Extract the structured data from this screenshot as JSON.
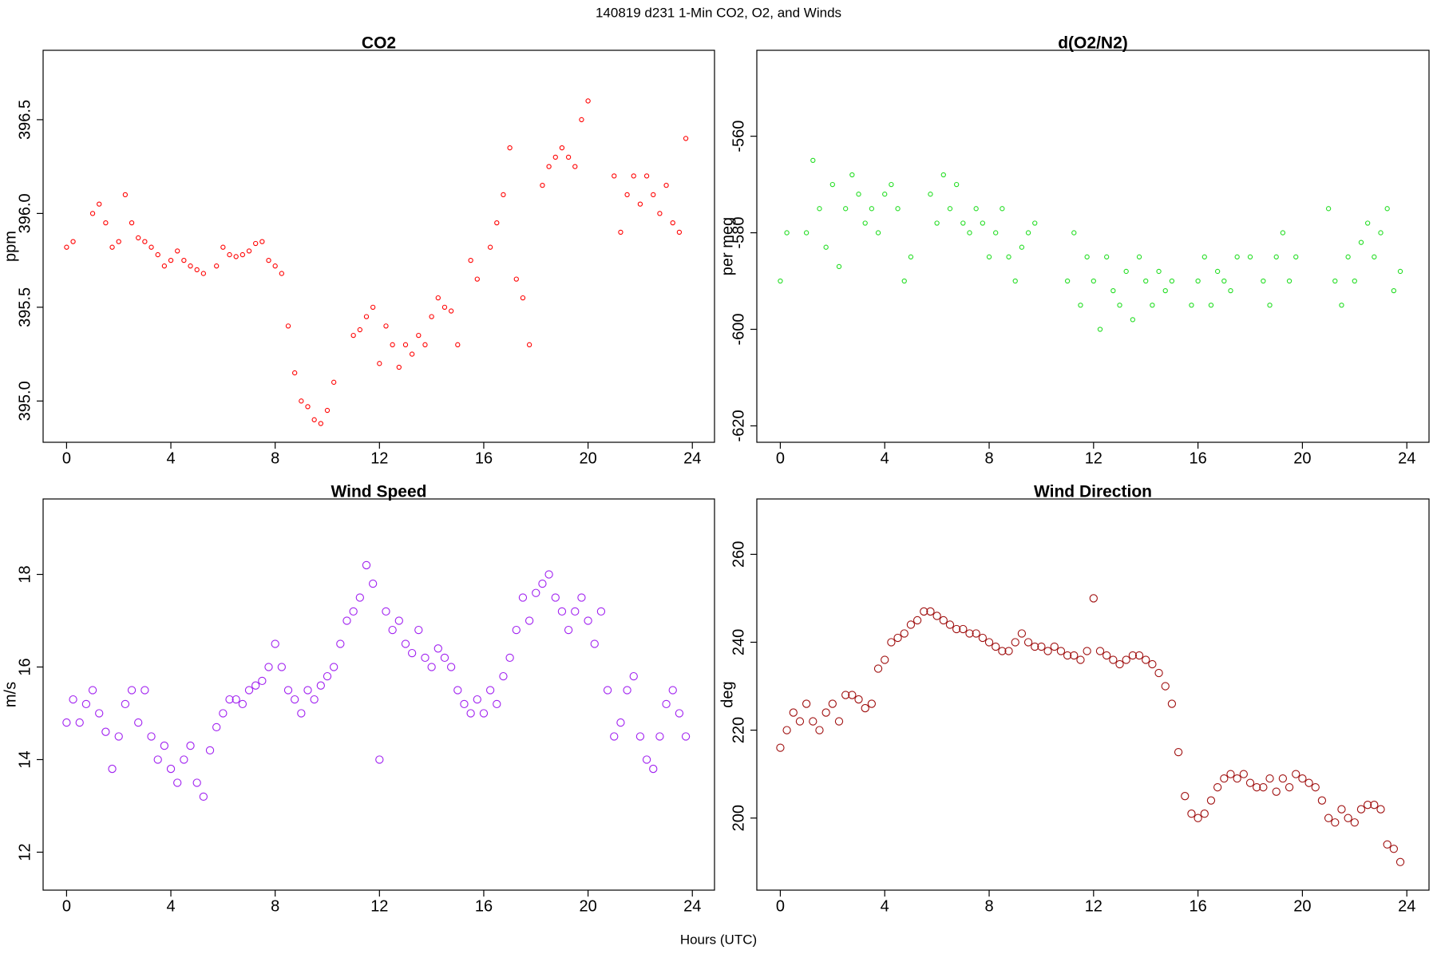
{
  "title": "140819   d231   1-Min CO2, O2, and Winds",
  "xlabel": "Hours (UTC)",
  "chart_data": [
    {
      "type": "scatter",
      "title": "CO2",
      "ylabel": "ppm",
      "color": "#ff0000",
      "x": [
        0,
        0.25,
        0.5,
        0.75,
        1,
        1.25,
        1.5,
        1.75,
        2,
        2.25,
        2.5,
        2.75,
        3,
        3.25,
        3.5,
        3.75,
        4,
        4.25,
        4.5,
        4.75,
        5,
        5.25,
        5.5,
        5.75,
        6,
        6.25,
        6.5,
        6.75,
        7,
        7.25,
        7.5,
        7.75,
        8,
        8.25,
        8.5,
        8.75,
        9,
        9.25,
        9.5,
        9.75,
        10,
        10.25,
        10.5,
        10.75,
        11,
        11.25,
        11.5,
        11.75,
        12,
        12.25,
        12.5,
        12.75,
        13,
        13.25,
        13.5,
        13.75,
        14,
        14.25,
        14.5,
        14.75,
        15,
        15.25,
        15.5,
        15.75,
        16,
        16.25,
        16.5,
        16.75,
        17,
        17.25,
        17.5,
        17.75,
        18,
        18.25,
        18.5,
        18.75,
        19,
        19.25,
        19.5,
        19.75,
        20,
        20.25,
        20.5,
        20.75,
        21,
        21.25,
        21.5,
        21.75,
        22,
        22.25,
        22.5,
        22.75,
        23,
        23.25,
        23.5,
        23.75
      ],
      "values": [
        395.82,
        395.85,
        null,
        null,
        396.0,
        396.05,
        395.95,
        395.82,
        395.85,
        396.1,
        395.95,
        395.87,
        395.85,
        395.82,
        395.78,
        395.72,
        395.75,
        395.8,
        395.75,
        395.72,
        395.7,
        395.68,
        null,
        395.72,
        395.82,
        395.78,
        395.77,
        395.78,
        395.8,
        395.84,
        395.85,
        395.75,
        395.72,
        395.68,
        395.4,
        395.15,
        395.0,
        394.97,
        394.9,
        394.88,
        394.95,
        395.1,
        null,
        null,
        395.35,
        395.38,
        395.45,
        395.5,
        395.2,
        395.4,
        395.3,
        395.18,
        395.3,
        395.25,
        395.35,
        395.3,
        395.45,
        395.55,
        395.5,
        395.48,
        395.3,
        null,
        395.75,
        395.65,
        null,
        395.82,
        395.95,
        396.1,
        396.35,
        395.65,
        395.55,
        395.3,
        null,
        396.15,
        396.25,
        396.3,
        396.35,
        396.3,
        396.25,
        396.5,
        396.6,
        null,
        null,
        null,
        396.2,
        395.9,
        396.1,
        396.2,
        396.05,
        396.2,
        396.1,
        396.0,
        396.15,
        395.95,
        395.9,
        396.4
      ],
      "xlim": [
        -0.9,
        24.85
      ],
      "xticks": [
        0,
        4,
        8,
        12,
        16,
        20,
        24
      ],
      "ylim": [
        394.78,
        396.87
      ],
      "yticks": [
        {
          "value": 395,
          "label": "395.0"
        },
        395.5,
        {
          "value": 396,
          "label": "396.0"
        },
        396.5
      ]
    },
    {
      "type": "scatter",
      "title": "d(O2/N2)",
      "ylabel": "per meg",
      "color": "#22dd22",
      "x": [
        0,
        0.25,
        0.5,
        0.75,
        1,
        1.25,
        1.5,
        1.75,
        2,
        2.25,
        2.5,
        2.75,
        3,
        3.25,
        3.5,
        3.75,
        4,
        4.25,
        4.5,
        4.75,
        5,
        5.25,
        5.5,
        5.75,
        6,
        6.25,
        6.5,
        6.75,
        7,
        7.25,
        7.5,
        7.75,
        8,
        8.25,
        8.5,
        8.75,
        9,
        9.25,
        9.5,
        9.75,
        10,
        10.25,
        10.5,
        10.75,
        11,
        11.25,
        11.5,
        11.75,
        12,
        12.25,
        12.5,
        12.75,
        13,
        13.25,
        13.5,
        13.75,
        14,
        14.25,
        14.5,
        14.75,
        15,
        15.25,
        15.5,
        15.75,
        16,
        16.25,
        16.5,
        16.75,
        17,
        17.25,
        17.5,
        17.75,
        18,
        18.25,
        18.5,
        18.75,
        19,
        19.25,
        19.5,
        19.75,
        20,
        20.25,
        20.5,
        20.75,
        21,
        21.25,
        21.5,
        21.75,
        22,
        22.25,
        22.5,
        22.75,
        23,
        23.25,
        23.5,
        23.75
      ],
      "values": [
        -590,
        -580,
        null,
        null,
        -580,
        -565,
        -575,
        -583,
        -570,
        -587,
        -575,
        -568,
        -572,
        -578,
        -575,
        -580,
        -572,
        -570,
        -575,
        -590,
        -585,
        null,
        null,
        -572,
        -578,
        -568,
        -575,
        -570,
        -578,
        -580,
        -575,
        -578,
        -585,
        -580,
        -575,
        -585,
        -590,
        -583,
        -580,
        -578,
        null,
        null,
        null,
        null,
        -590,
        -580,
        -595,
        -585,
        -590,
        -600,
        -585,
        -592,
        -595,
        -588,
        -598,
        -585,
        -590,
        -595,
        -588,
        -592,
        -590,
        null,
        null,
        -595,
        -590,
        -585,
        -595,
        -588,
        -590,
        -592,
        -585,
        null,
        -585,
        null,
        -590,
        -595,
        -585,
        -580,
        -590,
        -585,
        null,
        null,
        null,
        null,
        -575,
        -590,
        -595,
        -585,
        -590,
        -582,
        -578,
        -585,
        -580,
        -575,
        -592,
        -588
      ],
      "xlim": [
        -0.9,
        24.85
      ],
      "xticks": [
        0,
        4,
        8,
        12,
        16,
        20,
        24
      ],
      "ylim": [
        -623.4,
        -542.2
      ],
      "yticks": [
        -620,
        -600,
        -580,
        -560
      ]
    },
    {
      "type": "scatter",
      "title": "Wind Speed",
      "ylabel": "m/s",
      "color": "#a020f0",
      "x": [
        0,
        0.25,
        0.5,
        0.75,
        1,
        1.25,
        1.5,
        1.75,
        2,
        2.25,
        2.5,
        2.75,
        3,
        3.25,
        3.5,
        3.75,
        4,
        4.25,
        4.5,
        4.75,
        5,
        5.25,
        5.5,
        5.75,
        6,
        6.25,
        6.5,
        6.75,
        7,
        7.25,
        7.5,
        7.75,
        8,
        8.25,
        8.5,
        8.75,
        9,
        9.25,
        9.5,
        9.75,
        10,
        10.25,
        10.5,
        10.75,
        11,
        11.25,
        11.5,
        11.75,
        12,
        12.25,
        12.5,
        12.75,
        13,
        13.25,
        13.5,
        13.75,
        14,
        14.25,
        14.5,
        14.75,
        15,
        15.25,
        15.5,
        15.75,
        16,
        16.25,
        16.5,
        16.75,
        17,
        17.25,
        17.5,
        17.75,
        18,
        18.25,
        18.5,
        18.75,
        19,
        19.25,
        19.5,
        19.75,
        20,
        20.25,
        20.5,
        20.75,
        21,
        21.25,
        21.5,
        21.75,
        22,
        22.25,
        22.5,
        22.75,
        23,
        23.25,
        23.5,
        23.75
      ],
      "values": [
        14.8,
        15.3,
        14.8,
        15.2,
        15.5,
        15.0,
        14.6,
        13.8,
        14.5,
        15.2,
        15.5,
        14.8,
        15.5,
        14.5,
        14.0,
        14.3,
        13.8,
        13.5,
        14.0,
        14.3,
        13.5,
        13.2,
        14.2,
        14.7,
        15.0,
        15.3,
        15.3,
        15.2,
        15.5,
        15.6,
        15.7,
        16.0,
        16.5,
        16.0,
        15.5,
        15.3,
        15.0,
        15.5,
        15.3,
        15.6,
        15.8,
        16.0,
        16.5,
        17.0,
        17.2,
        17.5,
        18.2,
        17.8,
        14.0,
        17.2,
        16.8,
        17.0,
        16.5,
        16.3,
        16.8,
        16.2,
        16.0,
        16.4,
        16.2,
        16.0,
        15.5,
        15.2,
        15.0,
        15.3,
        15.0,
        15.5,
        15.2,
        15.8,
        16.2,
        16.8,
        17.5,
        17.0,
        17.6,
        17.8,
        18.0,
        17.5,
        17.2,
        16.8,
        17.2,
        17.5,
        17.0,
        16.5,
        17.2,
        15.5,
        14.5,
        14.8,
        15.5,
        15.8,
        14.5,
        14.0,
        13.8,
        14.5,
        15.2,
        15.5,
        15.0,
        14.5
      ],
      "xlim": [
        -0.9,
        24.85
      ],
      "xticks": [
        0,
        4,
        8,
        12,
        16,
        20,
        24
      ],
      "ylim": [
        11.18,
        19.63
      ],
      "yticks": [
        12,
        14,
        16,
        18
      ]
    },
    {
      "type": "scatter",
      "title": "Wind Direction",
      "ylabel": "deg",
      "color": "#a01010",
      "x": [
        0,
        0.25,
        0.5,
        0.75,
        1,
        1.25,
        1.5,
        1.75,
        2,
        2.25,
        2.5,
        2.75,
        3,
        3.25,
        3.5,
        3.75,
        4,
        4.25,
        4.5,
        4.75,
        5,
        5.25,
        5.5,
        5.75,
        6,
        6.25,
        6.5,
        6.75,
        7,
        7.25,
        7.5,
        7.75,
        8,
        8.25,
        8.5,
        8.75,
        9,
        9.25,
        9.5,
        9.75,
        10,
        10.25,
        10.5,
        10.75,
        11,
        11.25,
        11.5,
        11.75,
        12,
        12.25,
        12.5,
        12.75,
        13,
        13.25,
        13.5,
        13.75,
        14,
        14.25,
        14.5,
        14.75,
        15,
        15.25,
        15.5,
        15.75,
        16,
        16.25,
        16.5,
        16.75,
        17,
        17.25,
        17.5,
        17.75,
        18,
        18.25,
        18.5,
        18.75,
        19,
        19.25,
        19.5,
        19.75,
        20,
        20.25,
        20.5,
        20.75,
        21,
        21.25,
        21.5,
        21.75,
        22,
        22.25,
        22.5,
        22.75,
        23,
        23.25,
        23.5,
        23.75
      ],
      "values": [
        216,
        220,
        224,
        222,
        226,
        222,
        220,
        224,
        226,
        222,
        228,
        228,
        227,
        225,
        226,
        234,
        236,
        240,
        241,
        242,
        244,
        245,
        247,
        247,
        246,
        245,
        244,
        243,
        243,
        242,
        242,
        241,
        240,
        239,
        238,
        238,
        240,
        242,
        240,
        239,
        239,
        238,
        239,
        238,
        237,
        237,
        236,
        238,
        250,
        238,
        237,
        236,
        235,
        236,
        237,
        237,
        236,
        235,
        233,
        230,
        226,
        215,
        205,
        201,
        200,
        201,
        204,
        207,
        209,
        210,
        209,
        210,
        208,
        207,
        207,
        209,
        206,
        209,
        207,
        210,
        209,
        208,
        207,
        204,
        200,
        199,
        202,
        200,
        199,
        202,
        203,
        203,
        202,
        194,
        193,
        190
      ],
      "xlim": [
        -0.9,
        24.85
      ],
      "xticks": [
        0,
        4,
        8,
        12,
        16,
        20,
        24
      ],
      "ylim": [
        183.6,
        272.6
      ],
      "yticks": [
        200,
        220,
        240,
        260
      ]
    }
  ]
}
